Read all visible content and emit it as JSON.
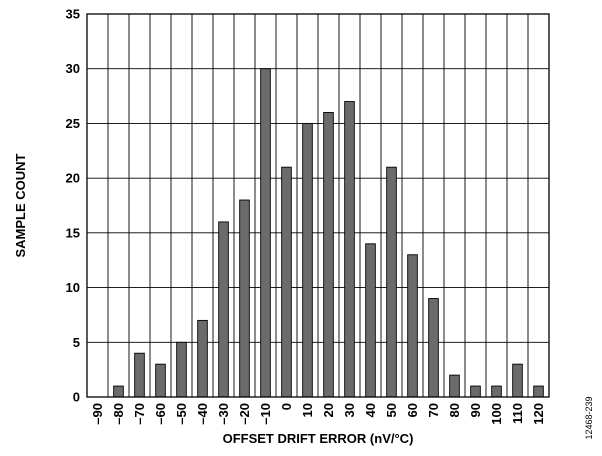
{
  "chart_data": {
    "type": "bar",
    "title": "",
    "xlabel": "OFFSET DRIFT ERROR (nV/°C)",
    "ylabel": "SAMPLE COUNT",
    "categories": [
      "–90",
      "–80",
      "–70",
      "–60",
      "–50",
      "–40",
      "–30",
      "–20",
      "–10",
      "0",
      "10",
      "20",
      "30",
      "40",
      "50",
      "60",
      "70",
      "80",
      "90",
      "100",
      "110",
      "120"
    ],
    "values": [
      0,
      1,
      4,
      3,
      5,
      7,
      16,
      18,
      30,
      21,
      25,
      26,
      27,
      14,
      21,
      13,
      9,
      2,
      1,
      1,
      3,
      1
    ],
    "ylim": [
      0,
      35
    ],
    "yticks": [
      0,
      5,
      10,
      15,
      20,
      25,
      30,
      35
    ],
    "grid": true,
    "legend": "none",
    "bar_color": "#6b6b6b",
    "figure_id": "12468-239"
  }
}
